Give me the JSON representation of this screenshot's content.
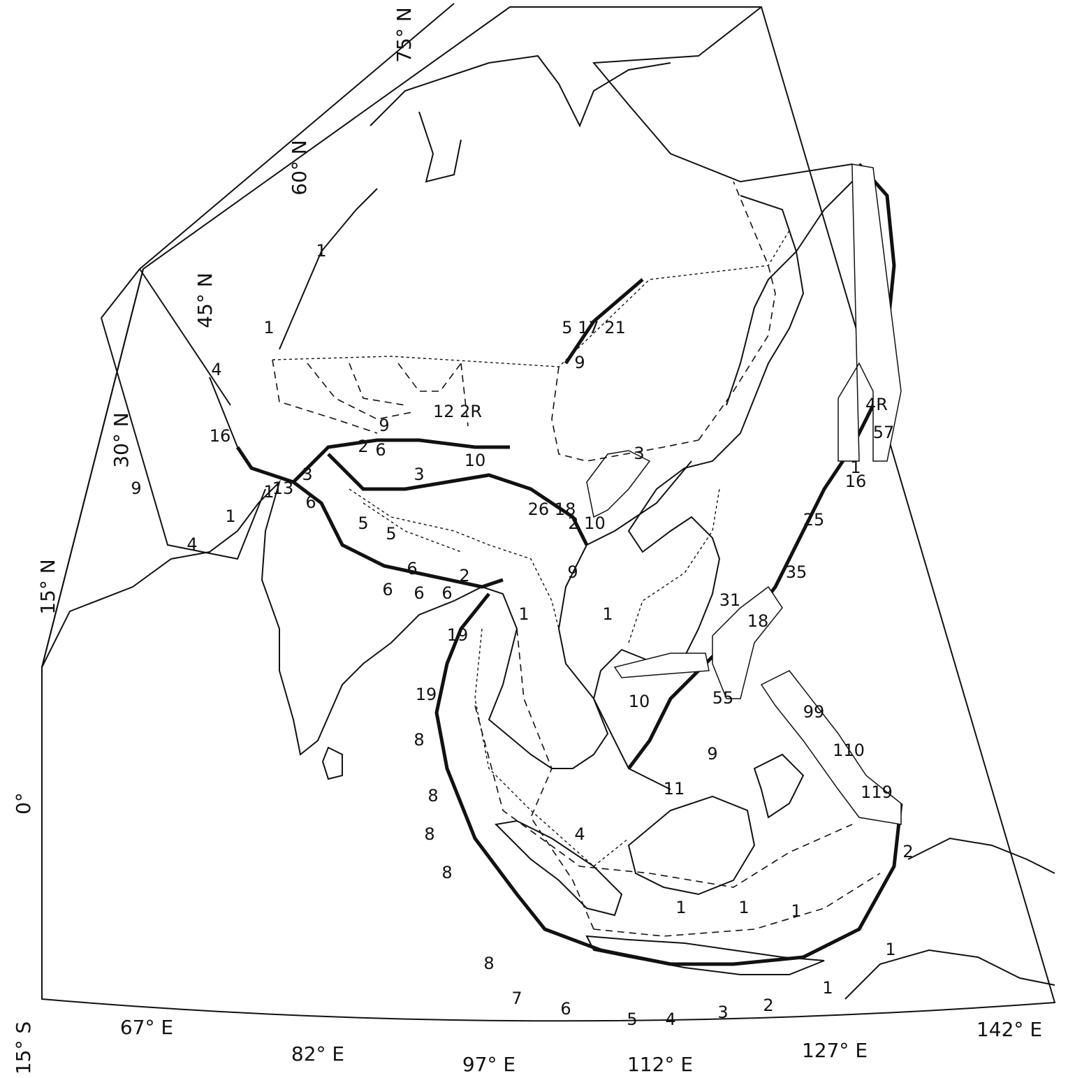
{
  "lat_labels": [
    "75° N",
    "60° N",
    "45° N",
    "30° N",
    "15° N",
    "0°",
    "15° S"
  ],
  "lon_labels": [
    "67° E",
    "82° E",
    "97° E",
    "112° E",
    "127° E",
    "142° E"
  ],
  "rate_labels": [
    "1",
    "1",
    "4",
    "16",
    "9",
    "4",
    "1",
    "1",
    "13",
    "6",
    "3",
    "2",
    "6",
    "3",
    "9",
    "12 2R",
    "10",
    "26 18",
    "3",
    "2 10",
    "9",
    "1",
    "1",
    "6",
    "6",
    "6",
    "6",
    "2",
    "19",
    "19",
    "8",
    "8",
    "8",
    "8",
    "8",
    "7",
    "6",
    "5",
    "4",
    "3",
    "2",
    "1",
    "1",
    "1",
    "1",
    "1",
    "2",
    "119",
    "110",
    "99",
    "55",
    "10",
    "9",
    "11",
    "4",
    "18",
    "31",
    "35",
    "25",
    "16",
    "57",
    "4R",
    "1",
    "9",
    "5 17 21",
    "5",
    "5"
  ]
}
